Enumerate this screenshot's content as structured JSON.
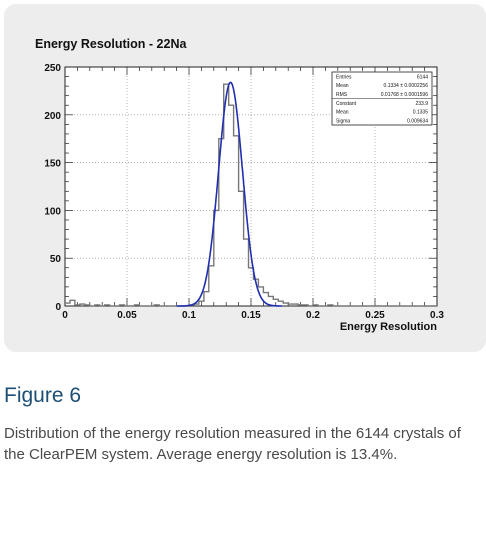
{
  "figure": {
    "title": "Figure 6",
    "caption": "Distribution of the energy resolution measured in the 6144 crystals of the ClearPEM system. Average energy resolution is 13.4%."
  },
  "colors": {
    "histogram": "#777777",
    "fit": "#1f2fb0",
    "panel": "#ededed",
    "plot_bg": "#ffffff"
  },
  "chart_data": {
    "type": "line",
    "title": "Energy Resolution - 22Na",
    "xlabel": "Energy Resolution",
    "ylabel": "",
    "xlim": [
      0,
      0.3
    ],
    "ylim": [
      0,
      250
    ],
    "grid": true,
    "x_ticks": [
      "0",
      "0.05",
      "0.1",
      "0.15",
      "0.2",
      "0.25",
      "0.3"
    ],
    "y_ticks": [
      "0",
      "50",
      "100",
      "150",
      "200",
      "250"
    ],
    "stats_box": {
      "placement": "top-right",
      "rows": [
        {
          "label": "Entries",
          "value": "6144"
        },
        {
          "label": "Mean",
          "value": "0.1334 ± 0.0002256"
        },
        {
          "label": "RMS",
          "value": "0.01768 ± 0.0001596"
        },
        {
          "label": "Constant",
          "value": "233.9"
        },
        {
          "label": "Mean",
          "value": "0.1335"
        },
        {
          "label": "Sigma",
          "value": "0.009634"
        }
      ]
    },
    "series": [
      {
        "kind": "histogram",
        "x": [
          0.0,
          0.004,
          0.008,
          0.012,
          0.016,
          0.02,
          0.024,
          0.028,
          0.032,
          0.036,
          0.04,
          0.044,
          0.048,
          0.052,
          0.056,
          0.06,
          0.064,
          0.068,
          0.072,
          0.076,
          0.08,
          0.084,
          0.088,
          0.092,
          0.096,
          0.1,
          0.104,
          0.108,
          0.112,
          0.116,
          0.12,
          0.124,
          0.128,
          0.132,
          0.136,
          0.14,
          0.144,
          0.148,
          0.152,
          0.156,
          0.16,
          0.164,
          0.168,
          0.172,
          0.176,
          0.18,
          0.184,
          0.188,
          0.192,
          0.196,
          0.2,
          0.204,
          0.208,
          0.212,
          0.216,
          0.22,
          0.224,
          0.228,
          0.232,
          0.236,
          0.24,
          0.244,
          0.248,
          0.252,
          0.256,
          0.26,
          0.264,
          0.268,
          0.272,
          0.276,
          0.28,
          0.284,
          0.288,
          0.292,
          0.296,
          0.3
        ],
        "y": [
          3,
          6,
          1,
          2,
          1,
          0,
          1,
          0,
          1,
          0,
          0,
          1,
          0,
          0,
          1,
          0,
          0,
          0,
          1,
          0,
          0,
          0,
          0,
          0,
          0,
          1,
          2,
          5,
          15,
          42,
          100,
          175,
          232,
          210,
          178,
          120,
          70,
          40,
          28,
          20,
          14,
          10,
          7,
          5,
          3,
          2,
          2,
          1,
          1,
          0,
          1,
          0,
          0,
          1,
          0,
          0,
          0,
          0,
          0,
          0,
          0,
          0,
          0,
          0,
          0,
          0,
          0,
          0,
          0,
          0,
          0,
          0,
          0,
          0,
          0,
          0
        ]
      },
      {
        "kind": "gaussian-fit",
        "constant": 233.9,
        "mean": 0.1335,
        "sigma": 0.009634
      }
    ]
  }
}
